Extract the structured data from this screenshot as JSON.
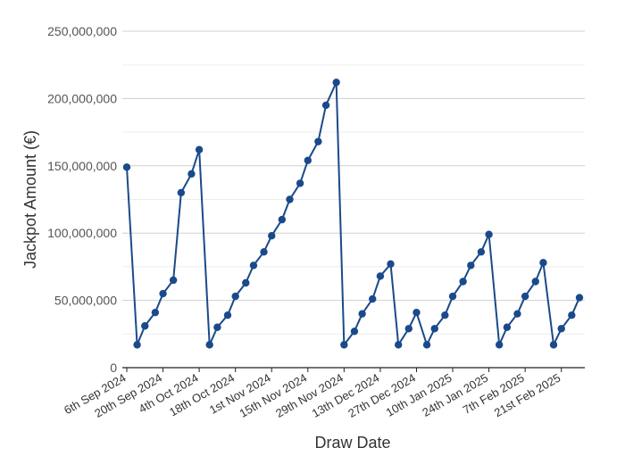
{
  "chart_data": {
    "type": "line",
    "xlabel": "Draw Date",
    "ylabel": "Jackpot Amount (€)",
    "ylim": [
      0,
      250000000
    ],
    "y_ticks": [
      "0",
      "50,000,000",
      "100,000,000",
      "150,000,000",
      "200,000,000",
      "250,000,000"
    ],
    "y_tick_values": [
      0,
      50000000,
      100000000,
      150000000,
      200000000,
      250000000
    ],
    "grid": true,
    "line_color": "#1a4a8a",
    "x_tick_labels": [
      "6th Sep 2024",
      "20th Sep 2024",
      "4th Oct 2024",
      "18th Oct 2024",
      "1st Nov 2024",
      "15th Nov 2024",
      "29th Nov 2024",
      "13th Dec 2024",
      "27th Dec 2024",
      "10th Jan 2025",
      "24th Jan 2025",
      "7th Feb 2025",
      "21st Feb 2025"
    ],
    "x": [
      "2024-09-06",
      "2024-09-10",
      "2024-09-13",
      "2024-09-17",
      "2024-09-20",
      "2024-09-24",
      "2024-09-27",
      "2024-10-01",
      "2024-10-04",
      "2024-10-08",
      "2024-10-11",
      "2024-10-15",
      "2024-10-18",
      "2024-10-22",
      "2024-10-25",
      "2024-10-29",
      "2024-11-01",
      "2024-11-05",
      "2024-11-08",
      "2024-11-12",
      "2024-11-15",
      "2024-11-19",
      "2024-11-22",
      "2024-11-26",
      "2024-11-29",
      "2024-12-03",
      "2024-12-06",
      "2024-12-10",
      "2024-12-13",
      "2024-12-17",
      "2024-12-20",
      "2024-12-24",
      "2024-12-27",
      "2024-12-31",
      "2025-01-03",
      "2025-01-07",
      "2025-01-10",
      "2025-01-14",
      "2025-01-17",
      "2025-01-21",
      "2025-01-24",
      "2025-01-28",
      "2025-01-31",
      "2025-02-04",
      "2025-02-07",
      "2025-02-11",
      "2025-02-14",
      "2025-02-18",
      "2025-02-21",
      "2025-02-25",
      "2025-02-28"
    ],
    "values": [
      149000000,
      17000000,
      31000000,
      41000000,
      55000000,
      65000000,
      130000000,
      144000000,
      162000000,
      17000000,
      30000000,
      39000000,
      53000000,
      63000000,
      76000000,
      86000000,
      98000000,
      110000000,
      125000000,
      137000000,
      154000000,
      168000000,
      195000000,
      212000000,
      17000000,
      27000000,
      40000000,
      51000000,
      68000000,
      77000000,
      17000000,
      29000000,
      41000000,
      17000000,
      29000000,
      39000000,
      53000000,
      64000000,
      76000000,
      86000000,
      99000000,
      17000000,
      30000000,
      40000000,
      53000000,
      64000000,
      78000000,
      17000000,
      29000000,
      39000000,
      52000000
    ]
  }
}
